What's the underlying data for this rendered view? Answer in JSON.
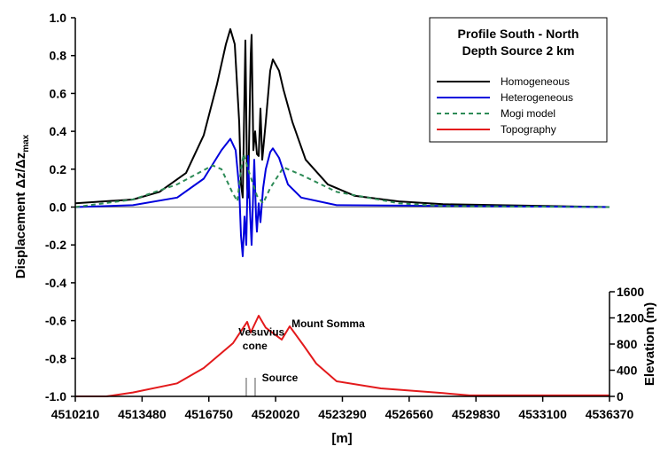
{
  "chart_data": {
    "type": "line",
    "title": [
      "Profile South - North",
      "Depth Source 2 km"
    ],
    "xlabel": "[m]",
    "ylabel": "Displacement Δz/Δz",
    "ylabel_sub": "max",
    "y2label": "Elevation (m)",
    "xlim": [
      4510210,
      4536370
    ],
    "ylim": [
      -1.0,
      1.0
    ],
    "y2lim": [
      0,
      1600
    ],
    "x_ticks": [
      "4510210",
      "4513480",
      "4516750",
      "4520020",
      "4523290",
      "4526560",
      "4529830",
      "4533100",
      "4536370"
    ],
    "y_ticks": [
      "1.0",
      "0.8",
      "0.6",
      "0.4",
      "0.2",
      "0.0",
      "-0.2",
      "-0.4",
      "-0.6",
      "-0.8",
      "-1.0"
    ],
    "y2_ticks": [
      "0",
      "400",
      "800",
      "1200",
      "1600"
    ],
    "legend_position": "top-right",
    "series": [
      {
        "name": "Homogeneous",
        "color": "#000000",
        "dash": false,
        "axis": "left",
        "points": [
          [
            4510210,
            0.02
          ],
          [
            4513030,
            0.04
          ],
          [
            4514331,
            0.08
          ],
          [
            4515633,
            0.18
          ],
          [
            4516500,
            0.38
          ],
          [
            4517151,
            0.65
          ],
          [
            4517585,
            0.86
          ],
          [
            4517802,
            0.94
          ],
          [
            4518018,
            0.86
          ],
          [
            4518235,
            0.45
          ],
          [
            4518322,
            0.12
          ],
          [
            4518409,
            0.05
          ],
          [
            4518539,
            0.88
          ],
          [
            4518626,
            0.1
          ],
          [
            4518669,
            0.05
          ],
          [
            4518799,
            0.8
          ],
          [
            4518843,
            0.91
          ],
          [
            4518929,
            0.3
          ],
          [
            4519016,
            0.4
          ],
          [
            4519103,
            0.28
          ],
          [
            4519190,
            0.27
          ],
          [
            4519276,
            0.52
          ],
          [
            4519363,
            0.25
          ],
          [
            4519537,
            0.45
          ],
          [
            4519754,
            0.72
          ],
          [
            4519884,
            0.78
          ],
          [
            4520187,
            0.72
          ],
          [
            4520404,
            0.62
          ],
          [
            4520838,
            0.45
          ],
          [
            4521489,
            0.25
          ],
          [
            4522573,
            0.12
          ],
          [
            4523875,
            0.06
          ],
          [
            4526044,
            0.03
          ],
          [
            4528213,
            0.015
          ],
          [
            4536370,
            0.0
          ]
        ]
      },
      {
        "name": "Heterogeneous",
        "color": "#0000dd",
        "dash": false,
        "axis": "left",
        "points": [
          [
            4510210,
            0.0
          ],
          [
            4513030,
            0.01
          ],
          [
            4515199,
            0.05
          ],
          [
            4516500,
            0.15
          ],
          [
            4517368,
            0.3
          ],
          [
            4517802,
            0.36
          ],
          [
            4518062,
            0.3
          ],
          [
            4518235,
            0.1
          ],
          [
            4518322,
            -0.15
          ],
          [
            4518409,
            -0.26
          ],
          [
            4518496,
            -0.05
          ],
          [
            4518582,
            -0.2
          ],
          [
            4518669,
            0.27
          ],
          [
            4518756,
            0.0
          ],
          [
            4518843,
            -0.2
          ],
          [
            4518973,
            0.25
          ],
          [
            4519060,
            -0.05
          ],
          [
            4519103,
            -0.13
          ],
          [
            4519190,
            0.02
          ],
          [
            4519276,
            -0.08
          ],
          [
            4519407,
            0.1
          ],
          [
            4519537,
            0.2
          ],
          [
            4519754,
            0.29
          ],
          [
            4519884,
            0.31
          ],
          [
            4520187,
            0.26
          ],
          [
            4520621,
            0.12
          ],
          [
            4521272,
            0.05
          ],
          [
            4523007,
            0.01
          ],
          [
            4536370,
            0.0
          ]
        ]
      },
      {
        "name": "Mogi model",
        "color": "#2e8b57",
        "dash": true,
        "axis": "left",
        "points": [
          [
            4510210,
            0.0
          ],
          [
            4513030,
            0.04
          ],
          [
            4515199,
            0.12
          ],
          [
            4516934,
            0.22
          ],
          [
            4517368,
            0.2
          ],
          [
            4517888,
            0.08
          ],
          [
            4518149,
            0.03
          ],
          [
            4518322,
            0.2
          ],
          [
            4518452,
            0.28
          ],
          [
            4518669,
            0.2
          ],
          [
            4519103,
            0.06
          ],
          [
            4519407,
            0.02
          ],
          [
            4519754,
            0.1
          ],
          [
            4520404,
            0.21
          ],
          [
            4521272,
            0.17
          ],
          [
            4523007,
            0.08
          ],
          [
            4526044,
            0.02
          ],
          [
            4528213,
            0.005
          ],
          [
            4536370,
            0.0
          ]
        ]
      },
      {
        "name": "Topography",
        "color": "#e31a1c",
        "dash": false,
        "axis": "right",
        "points": [
          [
            4510210,
            0
          ],
          [
            4511728,
            0
          ],
          [
            4513030,
            60
          ],
          [
            4515199,
            200
          ],
          [
            4516500,
            434
          ],
          [
            4517932,
            814
          ],
          [
            4518626,
            1140
          ],
          [
            4518799,
            976
          ],
          [
            4519190,
            1234
          ],
          [
            4519537,
            1050
          ],
          [
            4520318,
            868
          ],
          [
            4520708,
            1071
          ],
          [
            4521402,
            773
          ],
          [
            4522009,
            502
          ],
          [
            4523007,
            230
          ],
          [
            4525176,
            122
          ],
          [
            4528213,
            50
          ],
          [
            4529514,
            15
          ],
          [
            4536370,
            15
          ]
        ]
      }
    ],
    "annotations": [
      {
        "text": "Vesuvius",
        "x": 4518200,
        "elev": 930
      },
      {
        "text": "cone",
        "x": 4518400,
        "elev": 720
      },
      {
        "text": "Mount Somma",
        "x": 4520800,
        "elev": 1060
      },
      {
        "text": "Source",
        "x": 4519350,
        "elev": 230
      }
    ],
    "source_markers_x": [
      4518582,
      4519016
    ]
  }
}
